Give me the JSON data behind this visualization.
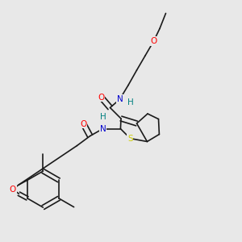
{
  "background_color": "#e8e8e8",
  "bond_color": "#1a1a1a",
  "atom_colors": {
    "O": "#ff0000",
    "N": "#0000cd",
    "S": "#cccc00",
    "H": "#008080",
    "C": "#1a1a1a"
  },
  "font_size": 7.5,
  "lw": 1.2
}
